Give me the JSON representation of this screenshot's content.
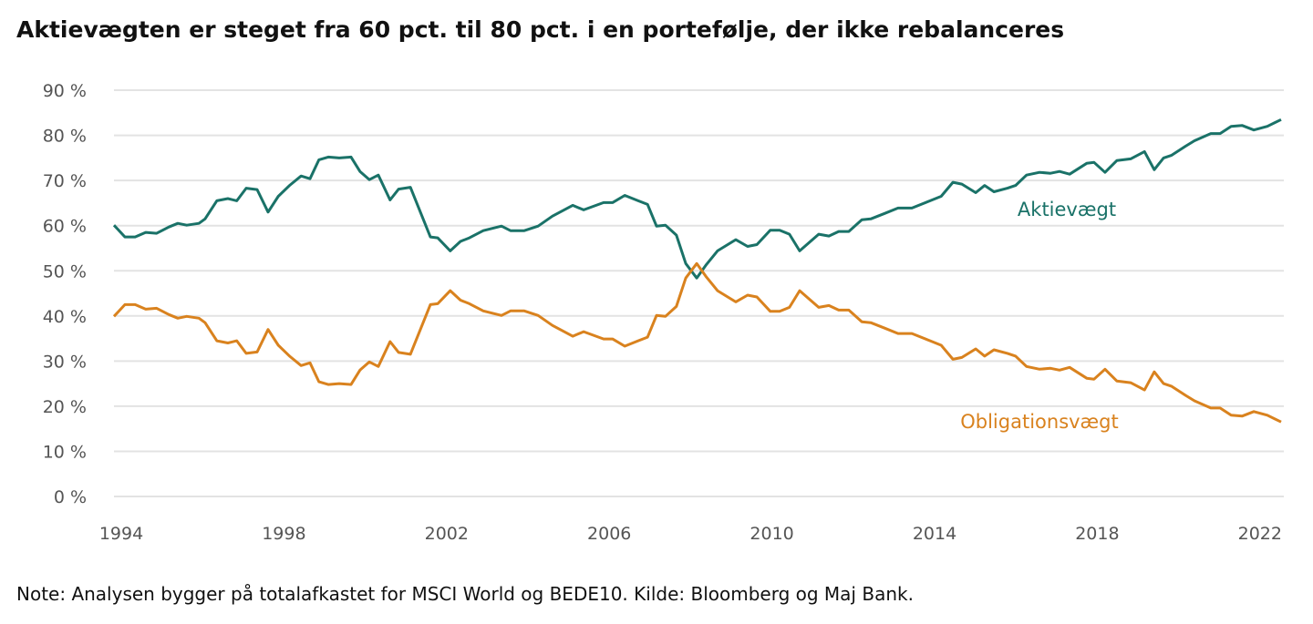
{
  "chart_data": {
    "type": "line",
    "title": "Aktievægten er steget fra 60 pct. til 80 pct. i en portefølje, der ikke rebalanceres",
    "note": "Note: Analysen bygger på totalafkastet for MSCI World og BEDE10. Kilde: Bloomberg og Maj Bank.",
    "xlabel": "",
    "ylabel": "",
    "ylim": [
      0,
      90
    ],
    "xlim": [
      1994,
      2022.7
    ],
    "grid": true,
    "legend": "inline labels",
    "y_ticks": [
      0,
      10,
      20,
      30,
      40,
      50,
      60,
      70,
      80,
      90
    ],
    "y_tick_labels": [
      "0 %",
      "10 %",
      "20 %",
      "30 %",
      "40 %",
      "50 %",
      "60 %",
      "70 %",
      "80 %",
      "90 %"
    ],
    "x_ticks": [
      1994,
      1998,
      2002,
      2006,
      2010,
      2014,
      2018,
      2022
    ],
    "x_tick_labels": [
      "1994",
      "1998",
      "2002",
      "2006",
      "2010",
      "2014",
      "2018",
      "2022"
    ],
    "x": [
      1994.0,
      1994.27,
      1994.52,
      1994.78,
      1995.05,
      1995.35,
      1995.57,
      1995.79,
      1996.09,
      1996.24,
      1996.53,
      1996.8,
      1997.02,
      1997.25,
      1997.52,
      1997.79,
      1998.04,
      1998.33,
      1998.6,
      1998.82,
      1999.04,
      1999.27,
      1999.54,
      1999.83,
      2000.05,
      2000.28,
      2000.5,
      2000.79,
      2001.0,
      2001.29,
      2001.78,
      2001.96,
      2002.27,
      2002.52,
      2002.74,
      2003.08,
      2003.53,
      2003.75,
      2004.09,
      2004.43,
      2004.78,
      2005.28,
      2005.55,
      2006.04,
      2006.26,
      2006.56,
      2006.89,
      2007.12,
      2007.34,
      2007.56,
      2007.83,
      2008.06,
      2008.33,
      2008.57,
      2008.84,
      2009.29,
      2009.58,
      2009.81,
      2010.14,
      2010.37,
      2010.61,
      2010.86,
      2011.33,
      2011.58,
      2011.82,
      2012.07,
      2012.39,
      2012.61,
      2012.95,
      2013.28,
      2013.62,
      2014.07,
      2014.34,
      2014.63,
      2014.85,
      2015.19,
      2015.41,
      2015.64,
      2015.97,
      2016.17,
      2016.44,
      2016.76,
      2017.03,
      2017.25,
      2017.5,
      2017.92,
      2018.1,
      2018.37,
      2018.66,
      2019.0,
      2019.34,
      2019.58,
      2019.81,
      2020.01,
      2020.35,
      2020.57,
      2020.97,
      2021.2,
      2021.47,
      2021.74,
      2022.03,
      2022.36,
      2022.7
    ],
    "series": [
      {
        "name": "Aktievægt",
        "color": "#1a7268",
        "values": [
          60.1,
          57.5,
          57.5,
          58.5,
          58.3,
          59.7,
          60.5,
          60.1,
          60.5,
          61.5,
          65.5,
          66,
          65.5,
          68.3,
          68,
          63,
          66.5,
          69,
          71,
          70.4,
          74.6,
          75.2,
          75,
          75.2,
          72,
          70.2,
          71.2,
          65.7,
          68.1,
          68.5,
          57.5,
          57.3,
          54.4,
          56.5,
          57.3,
          58.9,
          59.9,
          58.9,
          58.9,
          59.9,
          62.1,
          64.5,
          63.5,
          65.1,
          65.1,
          66.7,
          65.5,
          64.7,
          59.9,
          60.1,
          57.9,
          51.6,
          48.4,
          51.4,
          54.4,
          56.9,
          55.4,
          55.8,
          59,
          59,
          58.1,
          54.4,
          58.1,
          57.7,
          58.7,
          58.7,
          61.3,
          61.5,
          62.7,
          63.9,
          63.9,
          65.5,
          66.5,
          69.6,
          69.2,
          67.3,
          68.9,
          67.5,
          68.3,
          68.9,
          71.2,
          71.8,
          71.6,
          72,
          71.4,
          73.8,
          74,
          71.8,
          74.4,
          74.8,
          76.4,
          72.4,
          75,
          75.6,
          77.6,
          78.8,
          80.4,
          80.4,
          82,
          82.2,
          81.2,
          82,
          83.5
        ]
      },
      {
        "name": "Obligationsvægt",
        "color": "#d9821e",
        "values": [
          39.9,
          42.5,
          42.5,
          41.5,
          41.7,
          40.3,
          39.5,
          39.9,
          39.5,
          38.5,
          34.5,
          34,
          34.5,
          31.7,
          32,
          37,
          33.5,
          31,
          29,
          29.6,
          25.4,
          24.8,
          25,
          24.8,
          28,
          29.8,
          28.8,
          34.3,
          31.9,
          31.5,
          42.5,
          42.7,
          45.6,
          43.5,
          42.7,
          41.1,
          40.1,
          41.1,
          41.1,
          40.1,
          37.9,
          35.5,
          36.5,
          34.9,
          34.9,
          33.3,
          34.5,
          35.3,
          40.1,
          39.9,
          42.1,
          48.4,
          51.6,
          48.6,
          45.6,
          43.1,
          44.6,
          44.2,
          41,
          41,
          41.9,
          45.6,
          41.9,
          42.3,
          41.3,
          41.3,
          38.7,
          38.5,
          37.3,
          36.1,
          36.1,
          34.5,
          33.5,
          30.4,
          30.8,
          32.7,
          31.1,
          32.5,
          31.7,
          31.1,
          28.8,
          28.2,
          28.4,
          28,
          28.6,
          26.2,
          26,
          28.2,
          25.6,
          25.2,
          23.6,
          27.6,
          25,
          24.4,
          22.4,
          21.2,
          19.6,
          19.6,
          18,
          17.8,
          18.8,
          18,
          16.5
        ]
      }
    ],
    "annotations": [
      {
        "text": "Aktievægt",
        "series": 0
      },
      {
        "text": "Obligationsvægt",
        "series": 1
      }
    ]
  }
}
